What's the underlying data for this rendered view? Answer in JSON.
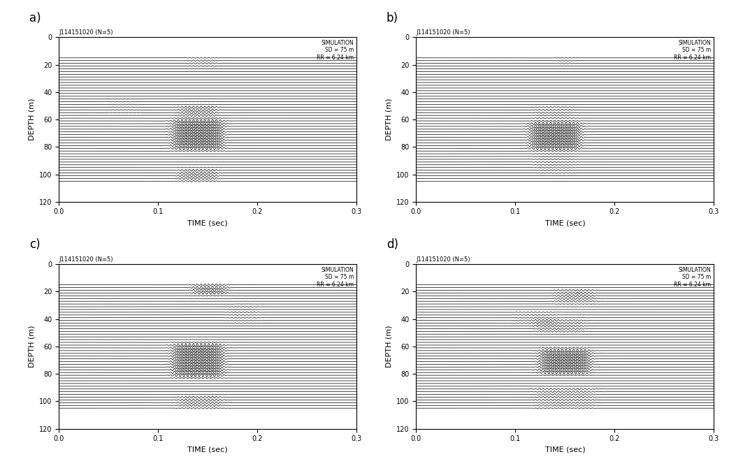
{
  "chart_data": [
    {
      "type": "wiggle",
      "panel": "a)",
      "header": "J114151020 (N=5)",
      "annotation": [
        "SIMULATION",
        "SD = 75 m",
        "RR = 6.24 km"
      ],
      "x_label": "TIME (sec)",
      "y_label": "DEPTH (m)",
      "color": "#000000",
      "xlim": [
        0.0,
        0.3
      ],
      "xticks": [
        0.0,
        0.1,
        0.2,
        0.3
      ],
      "ylim": [
        120,
        0
      ],
      "yticks": [
        0,
        20,
        40,
        60,
        80,
        100,
        120
      ],
      "trace_depths": [
        15,
        17,
        19,
        21,
        23,
        25,
        27,
        29,
        31,
        33,
        35,
        37,
        39,
        41,
        43,
        45,
        47,
        49,
        51,
        53,
        55,
        57,
        59,
        61,
        63,
        65,
        67,
        69,
        71,
        73,
        75,
        77,
        79,
        81,
        83,
        85,
        87,
        89,
        91,
        93,
        95,
        97,
        99,
        101,
        103,
        105
      ],
      "events": [
        {
          "time": [
            0.115,
            0.165
          ],
          "depth": [
            60,
            82
          ],
          "amplitude": 1.0
        },
        {
          "time": [
            0.12,
            0.16
          ],
          "depth": [
            50,
            58
          ],
          "amplitude": 0.6
        },
        {
          "time": [
            0.12,
            0.16
          ],
          "depth": [
            96,
            105
          ],
          "amplitude": 0.6
        },
        {
          "time": [
            0.13,
            0.16
          ],
          "depth": [
            15,
            22
          ],
          "amplitude": 0.3
        },
        {
          "time": [
            0.05,
            0.08
          ],
          "depth": [
            44,
            56
          ],
          "amplitude": 0.15
        }
      ]
    },
    {
      "type": "wiggle",
      "panel": "b)",
      "header": "J114151020 (N=5)",
      "annotation": [
        "SIMULATION",
        "SD = 75 m",
        "RR = 6.24 km"
      ],
      "x_label": "TIME (sec)",
      "y_label": "DEPTH (m)",
      "color": "#000000",
      "xlim": [
        0.0,
        0.3
      ],
      "xticks": [
        0.0,
        0.1,
        0.2,
        0.3
      ],
      "ylim": [
        120,
        0
      ],
      "yticks": [
        0,
        20,
        40,
        60,
        80,
        100,
        120
      ],
      "trace_depths": [
        15,
        17,
        19,
        21,
        23,
        25,
        27,
        29,
        31,
        33,
        35,
        37,
        39,
        41,
        43,
        45,
        47,
        49,
        51,
        53,
        55,
        57,
        59,
        61,
        63,
        65,
        67,
        69,
        71,
        73,
        75,
        77,
        79,
        81,
        83,
        85,
        87,
        89,
        91,
        93,
        95,
        97,
        99,
        101,
        103,
        105
      ],
      "events": [
        {
          "time": [
            0.115,
            0.165
          ],
          "depth": [
            62,
            82
          ],
          "amplitude": 1.0
        },
        {
          "time": [
            0.12,
            0.16
          ],
          "depth": [
            50,
            60
          ],
          "amplitude": 0.3
        },
        {
          "time": [
            0.14,
            0.16
          ],
          "depth": [
            15,
            20
          ],
          "amplitude": 0.3
        },
        {
          "time": [
            0.12,
            0.16
          ],
          "depth": [
            84,
            100
          ],
          "amplitude": 0.25
        }
      ]
    },
    {
      "type": "wiggle",
      "panel": "c)",
      "header": "J114151020 (N=5)",
      "annotation": [
        "SIMULATION",
        "SD = 75 m",
        "RR = 6.24 km"
      ],
      "x_label": "TIME (sec)",
      "y_label": "DEPTH (m)",
      "color": "#000000",
      "xlim": [
        0.0,
        0.3
      ],
      "xticks": [
        0.0,
        0.1,
        0.2,
        0.3
      ],
      "ylim": [
        120,
        0
      ],
      "yticks": [
        0,
        20,
        40,
        60,
        80,
        100,
        120
      ],
      "trace_depths": [
        15,
        17,
        19,
        21,
        23,
        25,
        27,
        29,
        31,
        33,
        35,
        37,
        39,
        41,
        43,
        45,
        47,
        49,
        51,
        53,
        55,
        57,
        59,
        61,
        63,
        65,
        67,
        69,
        71,
        73,
        75,
        77,
        79,
        81,
        83,
        85,
        87,
        89,
        91,
        93,
        95,
        97,
        99,
        101,
        103,
        105
      ],
      "events": [
        {
          "time": [
            0.115,
            0.165
          ],
          "depth": [
            58,
            82
          ],
          "amplitude": 1.0
        },
        {
          "time": [
            0.135,
            0.17
          ],
          "depth": [
            15,
            22
          ],
          "amplitude": 0.8
        },
        {
          "time": [
            0.12,
            0.165
          ],
          "depth": [
            96,
            105
          ],
          "amplitude": 0.5
        },
        {
          "time": [
            0.17,
            0.2
          ],
          "depth": [
            30,
            45
          ],
          "amplitude": 0.2
        }
      ]
    },
    {
      "type": "wiggle",
      "panel": "d)",
      "header": "J114151020 (N=5)",
      "annotation": [
        "SIMULATION",
        "SD = 75 m",
        "RR = 6.24 km"
      ],
      "x_label": "TIME (sec)",
      "y_label": "DEPTH (m)",
      "color": "#000000",
      "xlim": [
        0.0,
        0.3
      ],
      "xticks": [
        0.0,
        0.1,
        0.2,
        0.3
      ],
      "ylim": [
        120,
        0
      ],
      "yticks": [
        0,
        20,
        40,
        60,
        80,
        100,
        120
      ],
      "trace_depths": [
        15,
        17,
        19,
        21,
        23,
        25,
        27,
        29,
        31,
        33,
        35,
        37,
        39,
        41,
        43,
        45,
        47,
        49,
        51,
        53,
        55,
        57,
        59,
        61,
        63,
        65,
        67,
        69,
        71,
        73,
        75,
        77,
        79,
        81,
        83,
        85,
        87,
        89,
        91,
        93,
        95,
        97,
        99,
        101,
        103,
        105
      ],
      "events": [
        {
          "time": [
            0.125,
            0.175
          ],
          "depth": [
            62,
            80
          ],
          "amplitude": 1.0
        },
        {
          "time": [
            0.14,
            0.18
          ],
          "depth": [
            18,
            28
          ],
          "amplitude": 0.5
        },
        {
          "time": [
            0.12,
            0.17
          ],
          "depth": [
            40,
            50
          ],
          "amplitude": 0.4
        },
        {
          "time": [
            0.12,
            0.18
          ],
          "depth": [
            90,
            105
          ],
          "amplitude": 0.35
        },
        {
          "time": [
            0.1,
            0.14
          ],
          "depth": [
            35,
            45
          ],
          "amplitude": 0.25
        }
      ]
    }
  ]
}
